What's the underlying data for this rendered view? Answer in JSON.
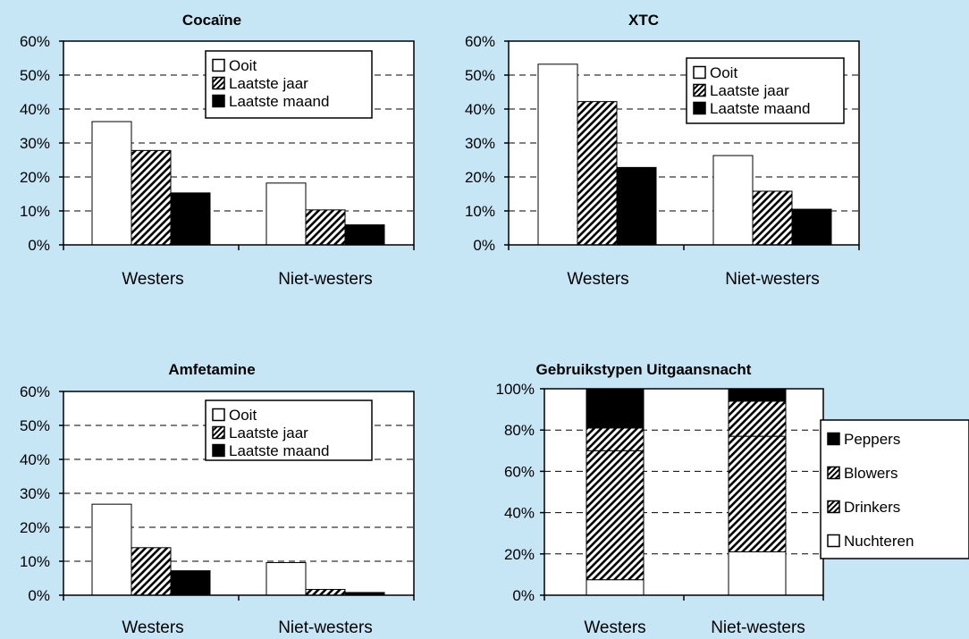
{
  "chart_data": [
    {
      "type": "bar",
      "title": "Cocaïne",
      "categories": [
        "Westers",
        "Niet-westers"
      ],
      "series": [
        {
          "name": "Ooit",
          "values": [
            36.3,
            18.2
          ]
        },
        {
          "name": "Laatste jaar",
          "values": [
            27.8,
            10.3
          ]
        },
        {
          "name": "Laatste maand",
          "values": [
            15.3,
            5.9
          ]
        }
      ],
      "ylim": [
        0,
        60
      ],
      "yticks": [
        "0%",
        "10%",
        "20%",
        "30%",
        "40%",
        "50%",
        "60%"
      ],
      "grid": true,
      "legend": "top-right"
    },
    {
      "type": "bar",
      "title": "XTC",
      "categories": [
        "Westers",
        "Niet-westers"
      ],
      "series": [
        {
          "name": "Ooit",
          "values": [
            53.2,
            26.3
          ]
        },
        {
          "name": "Laatste jaar",
          "values": [
            42.2,
            15.8
          ]
        },
        {
          "name": "Laatste maand",
          "values": [
            22.8,
            10.5
          ]
        }
      ],
      "ylim": [
        0,
        60
      ],
      "yticks": [
        "0%",
        "10%",
        "20%",
        "30%",
        "40%",
        "50%",
        "60%"
      ],
      "grid": true,
      "legend": "top-right"
    },
    {
      "type": "bar",
      "title": "Amfetamine",
      "categories": [
        "Westers",
        "Niet-westers"
      ],
      "series": [
        {
          "name": "Ooit",
          "values": [
            26.8,
            9.6
          ]
        },
        {
          "name": "Laatste jaar",
          "values": [
            14.0,
            1.7
          ]
        },
        {
          "name": "Laatste maand",
          "values": [
            7.2,
            0.8
          ]
        }
      ],
      "ylim": [
        0,
        60
      ],
      "yticks": [
        "0%",
        "10%",
        "20%",
        "30%",
        "40%",
        "50%",
        "60%"
      ],
      "grid": true,
      "legend": "top-right"
    },
    {
      "type": "bar",
      "stacked": true,
      "title": "Gebruikstypen Uitgaansnacht",
      "categories": [
        "Westers",
        "Niet-westers"
      ],
      "series": [
        {
          "name": "Nuchteren",
          "values": [
            7.5,
            21.0
          ]
        },
        {
          "name": "Drinkers",
          "values": [
            62.5,
            56.0
          ]
        },
        {
          "name": "Blowers",
          "values": [
            11.0,
            17.0
          ]
        },
        {
          "name": "Peppers",
          "values": [
            19.0,
            6.0
          ]
        }
      ],
      "ylim": [
        0,
        100
      ],
      "yticks": [
        "0%",
        "20%",
        "40%",
        "60%",
        "80%",
        "100%"
      ],
      "grid": true,
      "legend": "right"
    }
  ]
}
